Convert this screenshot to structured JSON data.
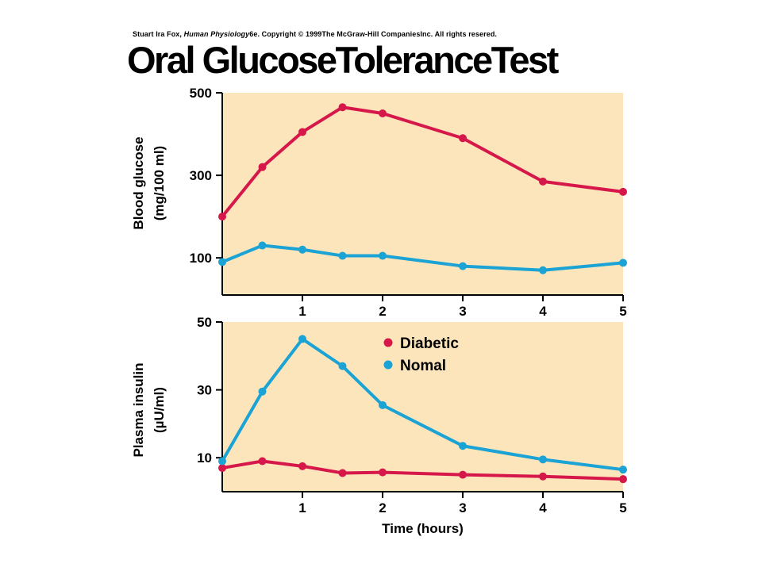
{
  "credit": {
    "prefix": "Stuart Ira Fox, ",
    "book": "Human Physiology",
    "suffix": "6e. Copyright © 1999The McGraw-Hill CompaniesInc.  All rights resered."
  },
  "title": "Oral GlucoseToleranceTest",
  "colors": {
    "diabetic": "#d6174a",
    "normal": "#1aa3d4",
    "plot_background": "#fde5bb"
  },
  "chart_data": [
    {
      "type": "line",
      "title": "",
      "ylabel": "Blood glucose",
      "ylabel_unit": "(mg/100 ml)",
      "xlabel": "",
      "xlim": [
        0,
        5
      ],
      "ylim": [
        10,
        500
      ],
      "yticks": [
        100,
        300,
        500
      ],
      "xticks": [
        1,
        2,
        3,
        4,
        5
      ],
      "grid": false,
      "series": [
        {
          "name": "Diabetic",
          "color": "#d6174a",
          "x": [
            0,
            0.5,
            1,
            1.5,
            2,
            3,
            4,
            5
          ],
          "y": [
            200,
            320,
            405,
            465,
            450,
            390,
            285,
            260
          ]
        },
        {
          "name": "Nomal",
          "color": "#1aa3d4",
          "x": [
            0,
            0.5,
            1,
            1.5,
            2,
            3,
            4,
            5
          ],
          "y": [
            90,
            130,
            120,
            105,
            105,
            80,
            70,
            88
          ]
        }
      ]
    },
    {
      "type": "line",
      "title": "",
      "ylabel": "Plasma insulin",
      "ylabel_unit": "(µU/ml)",
      "xlabel": "Time (hours)",
      "xlim": [
        0,
        5
      ],
      "ylim": [
        0,
        50
      ],
      "yticks": [
        10,
        30,
        50
      ],
      "xticks": [
        1,
        2,
        3,
        4,
        5
      ],
      "grid": false,
      "legend": {
        "position": "top-center",
        "entries": [
          "Diabetic",
          "Nomal"
        ]
      },
      "series": [
        {
          "name": "Diabetic",
          "color": "#d6174a",
          "x": [
            0,
            0.5,
            1,
            1.5,
            2,
            3,
            4,
            5
          ],
          "y": [
            7,
            9,
            7.5,
            5.5,
            5.7,
            5,
            4.5,
            3.7
          ]
        },
        {
          "name": "Nomal",
          "color": "#1aa3d4",
          "x": [
            0,
            0.5,
            1,
            1.5,
            2,
            3,
            4,
            5
          ],
          "y": [
            9,
            29.5,
            45,
            37,
            25.5,
            13.5,
            9.5,
            6.5
          ]
        }
      ]
    }
  ]
}
